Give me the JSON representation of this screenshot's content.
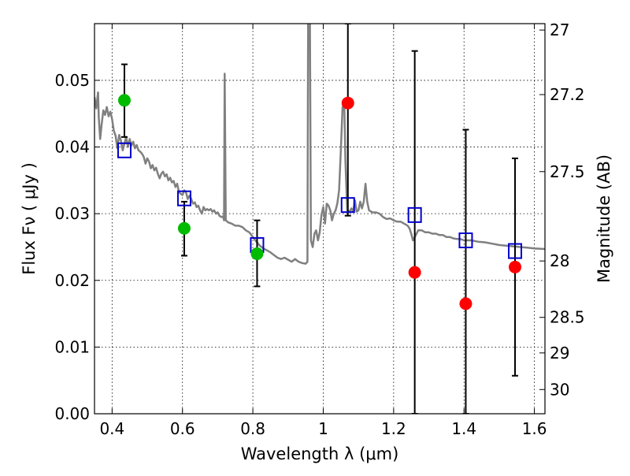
{
  "chart_data": {
    "type": "scatter",
    "xlabel": "Wavelength  λ (μm)",
    "ylabel": "Flux  Fν  ( μJy )",
    "y2label": "Magnitude (AB)",
    "xlim": [
      0.35,
      1.63
    ],
    "ylim": [
      0.0,
      0.0585
    ],
    "grid": true,
    "x_ticks": [
      {
        "v": 0.4,
        "label": "0.4"
      },
      {
        "v": 0.6,
        "label": "0.6"
      },
      {
        "v": 0.8,
        "label": "0.8"
      },
      {
        "v": 1.0,
        "label": "1"
      },
      {
        "v": 1.2,
        "label": "1.2"
      },
      {
        "v": 1.4,
        "label": "1.4"
      },
      {
        "v": 1.6,
        "label": "1.6"
      }
    ],
    "y_ticks": [
      {
        "v": 0.0,
        "label": "0.00"
      },
      {
        "v": 0.01,
        "label": "0.01"
      },
      {
        "v": 0.02,
        "label": "0.02"
      },
      {
        "v": 0.03,
        "label": "0.03"
      },
      {
        "v": 0.04,
        "label": "0.04"
      },
      {
        "v": 0.05,
        "label": "0.05"
      }
    ],
    "mag_ticks": [
      {
        "flux": 0.05754,
        "label": "27"
      },
      {
        "flux": 0.04786,
        "label": "27.2"
      },
      {
        "flux": 0.03631,
        "label": "27.5"
      },
      {
        "flux": 0.02291,
        "label": "28"
      },
      {
        "flux": 0.01445,
        "label": "28.5"
      },
      {
        "flux": 0.00912,
        "label": "29"
      },
      {
        "flux": 0.00363,
        "label": "30"
      }
    ],
    "series": [
      {
        "type": "line",
        "color": "#808080",
        "points": [
          [
            0.35,
            0.0475
          ],
          [
            0.355,
            0.0458
          ],
          [
            0.36,
            0.0482
          ],
          [
            0.362,
            0.0445
          ],
          [
            0.366,
            0.0412
          ],
          [
            0.37,
            0.0432
          ],
          [
            0.375,
            0.0455
          ],
          [
            0.38,
            0.0448
          ],
          [
            0.385,
            0.046
          ],
          [
            0.39,
            0.0446
          ],
          [
            0.395,
            0.0453
          ],
          [
            0.4,
            0.0442
          ],
          [
            0.405,
            0.0424
          ],
          [
            0.41,
            0.0417
          ],
          [
            0.415,
            0.0398
          ],
          [
            0.42,
            0.0418
          ],
          [
            0.425,
            0.041
          ],
          [
            0.43,
            0.0395
          ],
          [
            0.435,
            0.0405
          ],
          [
            0.44,
            0.0415
          ],
          [
            0.445,
            0.04
          ],
          [
            0.45,
            0.0412
          ],
          [
            0.455,
            0.0402
          ],
          [
            0.46,
            0.0408
          ],
          [
            0.465,
            0.0398
          ],
          [
            0.47,
            0.0403
          ],
          [
            0.475,
            0.0395
          ],
          [
            0.48,
            0.0393
          ],
          [
            0.485,
            0.039
          ],
          [
            0.49,
            0.0385
          ],
          [
            0.495,
            0.0375
          ],
          [
            0.5,
            0.0383
          ],
          [
            0.505,
            0.0378
          ],
          [
            0.51,
            0.0368
          ],
          [
            0.515,
            0.0373
          ],
          [
            0.52,
            0.0365
          ],
          [
            0.525,
            0.0369
          ],
          [
            0.53,
            0.036
          ],
          [
            0.535,
            0.0353
          ],
          [
            0.54,
            0.036
          ],
          [
            0.545,
            0.0363
          ],
          [
            0.55,
            0.0356
          ],
          [
            0.555,
            0.0359
          ],
          [
            0.56,
            0.035
          ],
          [
            0.565,
            0.0354
          ],
          [
            0.57,
            0.0347
          ],
          [
            0.575,
            0.0349
          ],
          [
            0.58,
            0.034
          ],
          [
            0.585,
            0.0345
          ],
          [
            0.59,
            0.0332
          ],
          [
            0.6,
            0.0328
          ],
          [
            0.605,
            0.0335
          ],
          [
            0.61,
            0.0332
          ],
          [
            0.615,
            0.0322
          ],
          [
            0.62,
            0.0327
          ],
          [
            0.625,
            0.0322
          ],
          [
            0.63,
            0.0315
          ],
          [
            0.635,
            0.0317
          ],
          [
            0.64,
            0.031
          ],
          [
            0.645,
            0.0312
          ],
          [
            0.65,
            0.0305
          ],
          [
            0.655,
            0.03
          ],
          [
            0.66,
            0.031
          ],
          [
            0.665,
            0.0305
          ],
          [
            0.67,
            0.0307
          ],
          [
            0.675,
            0.0305
          ],
          [
            0.68,
            0.0307
          ],
          [
            0.685,
            0.0303
          ],
          [
            0.69,
            0.0305
          ],
          [
            0.695,
            0.03
          ],
          [
            0.7,
            0.0302
          ],
          [
            0.705,
            0.0297
          ],
          [
            0.71,
            0.0295
          ],
          [
            0.715,
            0.0296
          ],
          [
            0.718,
            0.029
          ],
          [
            0.72,
            0.051
          ],
          [
            0.723,
            0.029
          ],
          [
            0.73,
            0.0287
          ],
          [
            0.74,
            0.0285
          ],
          [
            0.75,
            0.0282
          ],
          [
            0.76,
            0.0282
          ],
          [
            0.77,
            0.028
          ],
          [
            0.78,
            0.0275
          ],
          [
            0.79,
            0.0272
          ],
          [
            0.8,
            0.0265
          ],
          [
            0.81,
            0.0258
          ],
          [
            0.82,
            0.0252
          ],
          [
            0.83,
            0.0248
          ],
          [
            0.84,
            0.0245
          ],
          [
            0.85,
            0.0242
          ],
          [
            0.86,
            0.0238
          ],
          [
            0.87,
            0.0234
          ],
          [
            0.88,
            0.0232
          ],
          [
            0.89,
            0.0234
          ],
          [
            0.9,
            0.0231
          ],
          [
            0.91,
            0.0228
          ],
          [
            0.92,
            0.0232
          ],
          [
            0.93,
            0.0228
          ],
          [
            0.94,
            0.0226
          ],
          [
            0.95,
            0.0225
          ],
          [
            0.955,
            0.0228
          ],
          [
            0.957,
            0.06
          ],
          [
            0.962,
            0.06
          ],
          [
            0.965,
            0.026
          ],
          [
            0.97,
            0.025
          ],
          [
            0.975,
            0.027
          ],
          [
            0.98,
            0.0275
          ],
          [
            0.985,
            0.026
          ],
          [
            0.99,
            0.0272
          ],
          [
            0.995,
            0.0298
          ],
          [
            1.0,
            0.031
          ],
          [
            1.005,
            0.0285
          ],
          [
            1.01,
            0.0315
          ],
          [
            1.015,
            0.0312
          ],
          [
            1.02,
            0.0305
          ],
          [
            1.025,
            0.029
          ],
          [
            1.03,
            0.03
          ],
          [
            1.035,
            0.0305
          ],
          [
            1.04,
            0.0315
          ],
          [
            1.045,
            0.0335
          ],
          [
            1.05,
            0.0395
          ],
          [
            1.055,
            0.046
          ],
          [
            1.06,
            0.0458
          ],
          [
            1.063,
            0.038
          ],
          [
            1.068,
            0.0305
          ],
          [
            1.075,
            0.0303
          ],
          [
            1.08,
            0.0308
          ],
          [
            1.085,
            0.0303
          ],
          [
            1.09,
            0.032
          ],
          [
            1.095,
            0.0303
          ],
          [
            1.1,
            0.0305
          ],
          [
            1.105,
            0.0318
          ],
          [
            1.11,
            0.0308
          ],
          [
            1.115,
            0.0318
          ],
          [
            1.12,
            0.0345
          ],
          [
            1.125,
            0.0318
          ],
          [
            1.13,
            0.0305
          ],
          [
            1.14,
            0.0302
          ],
          [
            1.15,
            0.0302
          ],
          [
            1.16,
            0.03
          ],
          [
            1.17,
            0.0295
          ],
          [
            1.18,
            0.0292
          ],
          [
            1.19,
            0.0293
          ],
          [
            1.2,
            0.029
          ],
          [
            1.21,
            0.0288
          ],
          [
            1.22,
            0.0288
          ],
          [
            1.23,
            0.0285
          ],
          [
            1.24,
            0.0282
          ],
          [
            1.245,
            0.0278
          ],
          [
            1.25,
            0.027
          ],
          [
            1.255,
            0.026
          ],
          [
            1.26,
            0.0265
          ],
          [
            1.27,
            0.0275
          ],
          [
            1.28,
            0.0275
          ],
          [
            1.29,
            0.0272
          ],
          [
            1.3,
            0.0272
          ],
          [
            1.31,
            0.027
          ],
          [
            1.32,
            0.027
          ],
          [
            1.33,
            0.0268
          ],
          [
            1.34,
            0.0268
          ],
          [
            1.35,
            0.0265
          ],
          [
            1.36,
            0.0265
          ],
          [
            1.37,
            0.0263
          ],
          [
            1.38,
            0.0262
          ],
          [
            1.39,
            0.0262
          ],
          [
            1.4,
            0.026
          ],
          [
            1.42,
            0.026
          ],
          [
            1.44,
            0.0258
          ],
          [
            1.46,
            0.0257
          ],
          [
            1.48,
            0.0255
          ],
          [
            1.5,
            0.0253
          ],
          [
            1.52,
            0.0252
          ],
          [
            1.54,
            0.0251
          ],
          [
            1.56,
            0.025
          ],
          [
            1.58,
            0.0249
          ],
          [
            1.6,
            0.0248
          ],
          [
            1.63,
            0.0247
          ]
        ]
      },
      {
        "type": "scatter",
        "marker": "square",
        "color": "#0000cc",
        "points": [
          [
            0.435,
            0.0395
          ],
          [
            0.605,
            0.0323
          ],
          [
            0.812,
            0.0253
          ],
          [
            1.07,
            0.0313
          ],
          [
            1.26,
            0.0298
          ],
          [
            1.405,
            0.026
          ],
          [
            1.545,
            0.0244
          ]
        ]
      },
      {
        "type": "scatter",
        "marker": "circle",
        "color": "#00bb00",
        "points": [
          [
            0.435,
            0.047
          ],
          [
            0.605,
            0.0278
          ],
          [
            0.812,
            0.024
          ]
        ]
      },
      {
        "type": "scatter",
        "marker": "circle",
        "color": "#ff0000",
        "points": [
          [
            1.07,
            0.0466
          ],
          [
            1.26,
            0.0212
          ],
          [
            1.405,
            0.0165
          ],
          [
            1.545,
            0.022
          ]
        ]
      },
      {
        "type": "errorbar",
        "color": "#000000",
        "points": [
          {
            "x": 0.435,
            "y": 0.047,
            "lo": 0.0415,
            "hi": 0.0524
          },
          {
            "x": 0.605,
            "y": 0.0278,
            "lo": 0.0237,
            "hi": 0.0318
          },
          {
            "x": 0.812,
            "y": 0.024,
            "lo": 0.0191,
            "hi": 0.029
          },
          {
            "x": 1.07,
            "y": 0.0466,
            "lo": 0.0297,
            "hi": 0.0585
          },
          {
            "x": 1.26,
            "y": 0.0212,
            "lo": 0.0,
            "hi": 0.0544
          },
          {
            "x": 1.405,
            "y": 0.0165,
            "lo": 0.0,
            "hi": 0.0426
          },
          {
            "x": 1.545,
            "y": 0.022,
            "lo": 0.0057,
            "hi": 0.0383
          }
        ]
      }
    ]
  }
}
